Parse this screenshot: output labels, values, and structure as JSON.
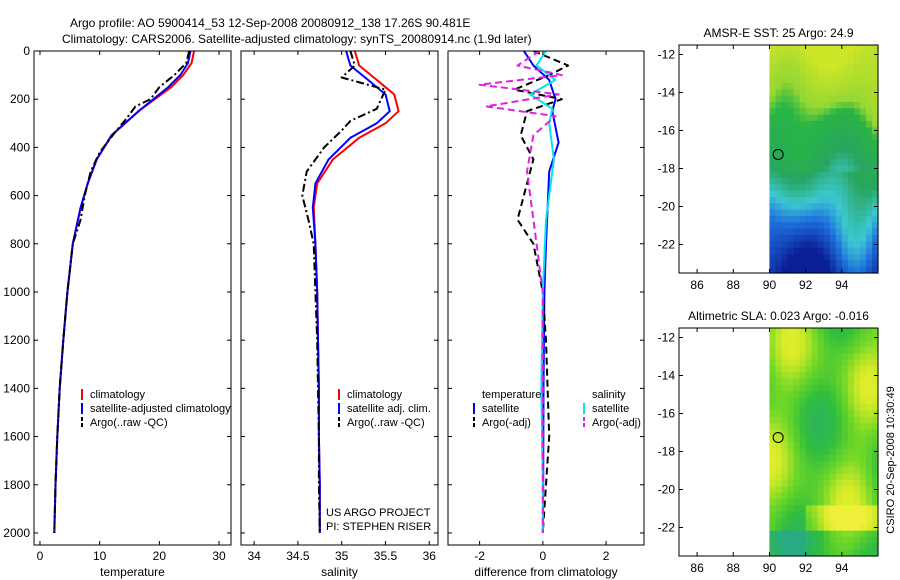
{
  "figure": {
    "title_line1": "Argo profile: AO 5900414_53 12-Sep-2008 20080912_138 17.26S 90.481E",
    "title_line2": "Climatology: CARS2006. Satellite-adjusted climatology: synTS_20080914.nc (1.9d later)",
    "credit": "CSIRO 20-Sep-2008 10:30:49"
  },
  "chart_data": [
    {
      "type": "line",
      "xlabel": "temperature",
      "xlim": [
        -1,
        32
      ],
      "ylim": [
        2050,
        0
      ],
      "y_reversed": true,
      "xticks": [
        0,
        10,
        20,
        30
      ],
      "yticks": [
        0,
        200,
        400,
        600,
        800,
        1000,
        1200,
        1400,
        1600,
        1800,
        2000
      ],
      "series": [
        {
          "name": "climatology",
          "color": "#ff0000",
          "style": "solid",
          "x": [
            25.8,
            25.4,
            24.0,
            22.0,
            16.5,
            12.0,
            9.5,
            8.0,
            6.8,
            5.5,
            4.6,
            3.9,
            3.3,
            2.9,
            2.6,
            2.4
          ],
          "y": [
            0,
            50,
            100,
            150,
            250,
            350,
            450,
            550,
            650,
            800,
            1000,
            1200,
            1400,
            1600,
            1800,
            2000
          ]
        },
        {
          "name": "satellite-adjusted climatology",
          "color": "#0000ff",
          "style": "solid",
          "x": [
            25.2,
            24.8,
            23.5,
            21.5,
            16.5,
            12.0,
            9.5,
            8.0,
            6.8,
            5.5,
            4.6,
            3.9,
            3.3,
            2.9,
            2.6,
            2.4
          ],
          "y": [
            0,
            50,
            100,
            150,
            250,
            350,
            450,
            550,
            650,
            800,
            1000,
            1200,
            1400,
            1600,
            1800,
            2000
          ]
        },
        {
          "name": "Argo(..raw -QC)",
          "color": "#000000",
          "style": "dashdot",
          "x": [
            25.0,
            24.5,
            22.5,
            20.0,
            18.5,
            16.0,
            14.5,
            12.5,
            10.0,
            8.5,
            7.5,
            6.8,
            5.5,
            4.6,
            3.9,
            3.3,
            2.9,
            2.6,
            2.4
          ],
          "y": [
            0,
            50,
            100,
            150,
            200,
            230,
            280,
            340,
            420,
            500,
            600,
            700,
            800,
            1000,
            1200,
            1400,
            1600,
            1800,
            2000
          ]
        }
      ],
      "legend": {
        "placement": "lower-right",
        "entries": [
          "climatology",
          "satellite-adjusted climatology",
          "Argo(..raw -QC)"
        ]
      }
    },
    {
      "type": "line",
      "xlabel": "salinity",
      "xlim": [
        33.85,
        36.1
      ],
      "ylim": [
        2050,
        0
      ],
      "y_reversed": true,
      "xticks": [
        34,
        34.5,
        35,
        35.5,
        36
      ],
      "yticks": [
        0,
        200,
        400,
        600,
        800,
        1000,
        1200,
        1400,
        1600,
        1800,
        2000
      ],
      "series": [
        {
          "name": "climatology",
          "color": "#ff0000",
          "style": "solid",
          "x": [
            35.15,
            35.2,
            35.4,
            35.6,
            35.65,
            35.5,
            35.2,
            34.9,
            34.72,
            34.68,
            34.7,
            34.72,
            34.73,
            34.74,
            34.74,
            34.75,
            34.75
          ],
          "y": [
            0,
            60,
            120,
            180,
            250,
            300,
            360,
            450,
            550,
            650,
            800,
            1000,
            1200,
            1400,
            1600,
            1800,
            2000
          ]
        },
        {
          "name": "satellite adj. clim.",
          "color": "#0000ff",
          "style": "solid",
          "x": [
            35.05,
            35.1,
            35.3,
            35.5,
            35.55,
            35.4,
            35.1,
            34.85,
            34.7,
            34.67,
            34.7,
            34.72,
            34.73,
            34.74,
            34.74,
            34.75,
            34.75
          ],
          "y": [
            0,
            60,
            120,
            180,
            250,
            300,
            360,
            450,
            550,
            650,
            800,
            1000,
            1200,
            1400,
            1600,
            1800,
            2000
          ]
        },
        {
          "name": "Argo(..raw -QC)",
          "color": "#000000",
          "style": "dashdot",
          "x": [
            35.1,
            35.15,
            35.0,
            35.5,
            35.45,
            35.4,
            35.1,
            35.0,
            34.8,
            34.6,
            34.55,
            34.62,
            34.68,
            34.7,
            34.72,
            34.73,
            34.74,
            34.74,
            34.75
          ],
          "y": [
            0,
            60,
            110,
            160,
            200,
            240,
            290,
            330,
            400,
            500,
            600,
            700,
            800,
            1000,
            1200,
            1400,
            1600,
            1800,
            2000
          ]
        }
      ],
      "legend": {
        "placement": "lower-right",
        "entries": [
          "climatology",
          "satellite adj. clim.",
          "Argo(..raw -QC)"
        ]
      },
      "annotations": [
        "US ARGO PROJECT",
        "PI: STEPHEN RISER"
      ]
    },
    {
      "type": "line",
      "xlabel": "difference from climatology",
      "xlim": [
        -3,
        3.2
      ],
      "ylim": [
        2050,
        0
      ],
      "y_reversed": true,
      "xticks": [
        -2,
        0,
        2
      ],
      "yticks": [
        0,
        200,
        400,
        600,
        800,
        1000,
        1200,
        1400,
        1600,
        1800,
        2000
      ],
      "series": [
        {
          "name": "temperature satellite",
          "color": "#0000ff",
          "style": "solid",
          "x": [
            -0.6,
            -0.3,
            0.2,
            0.4,
            0.3,
            0.5,
            0.2,
            0.15,
            0.1,
            0.05,
            0.02,
            0.01,
            0.0
          ],
          "y": [
            0,
            60,
            120,
            200,
            250,
            380,
            500,
            650,
            800,
            1000,
            1400,
            1800,
            2000
          ]
        },
        {
          "name": "temperature Argo(-adj)",
          "color": "#000000",
          "style": "dashed",
          "x": [
            -0.3,
            0.8,
            0.2,
            -0.9,
            0.6,
            -0.5,
            -0.7,
            -0.3,
            -0.5,
            -0.8,
            -0.3,
            0.0,
            0.1,
            0.2,
            0.1,
            0.0
          ],
          "y": [
            0,
            60,
            100,
            160,
            200,
            250,
            350,
            450,
            550,
            700,
            800,
            1000,
            1200,
            1600,
            1800,
            2000
          ]
        },
        {
          "name": "salinity satellite",
          "color": "#00e5ee",
          "style": "solid",
          "x": [
            0.1,
            -0.2,
            0.4,
            -0.4,
            0.3,
            0.2,
            0.35,
            0.1,
            0.0,
            -0.05,
            0.0,
            0.0
          ],
          "y": [
            0,
            60,
            120,
            180,
            240,
            300,
            450,
            700,
            1000,
            1400,
            1800,
            2000
          ]
        },
        {
          "name": "salinity Argo(-adj)",
          "color": "#e020e0",
          "style": "dashed",
          "x": [
            -0.1,
            -0.8,
            0.6,
            -2.0,
            0.5,
            -1.8,
            0.4,
            -0.3,
            -0.5,
            -0.3,
            0.0,
            0.0
          ],
          "y": [
            0,
            60,
            100,
            140,
            180,
            230,
            270,
            350,
            500,
            700,
            1000,
            2000
          ]
        }
      ],
      "legend": {
        "placement": "lower-center",
        "groups": [
          {
            "title": "temperature",
            "entries": [
              "satellite",
              "Argo(-adj)"
            ]
          },
          {
            "title": "salinity",
            "entries": [
              "satellite",
              "Argo(-adj)"
            ]
          }
        ]
      }
    },
    {
      "type": "heatmap",
      "title": "AMSR-E SST: 25 Argo: 24.9",
      "xlim": [
        85,
        96
      ],
      "ylim": [
        -23.5,
        -11.5
      ],
      "xticks": [
        86,
        88,
        90,
        92,
        94
      ],
      "yticks": [
        -12,
        -14,
        -16,
        -18,
        -20,
        -22
      ],
      "data_extent": {
        "lon": [
          90,
          96
        ],
        "lat": [
          -23.5,
          -11.5
        ]
      },
      "marker": {
        "lon": 90.48,
        "lat": -17.26
      }
    },
    {
      "type": "heatmap",
      "title": "Altimetric SLA: 0.023 Argo: -0.016",
      "xlim": [
        85,
        96
      ],
      "ylim": [
        -23.5,
        -11.5
      ],
      "xticks": [
        86,
        88,
        90,
        92,
        94
      ],
      "yticks": [
        -12,
        -14,
        -16,
        -18,
        -20,
        -22
      ],
      "data_extent": {
        "lon": [
          90,
          96
        ],
        "lat": [
          -23.5,
          -11.5
        ]
      },
      "marker": {
        "lon": 90.48,
        "lat": -17.26
      }
    }
  ]
}
